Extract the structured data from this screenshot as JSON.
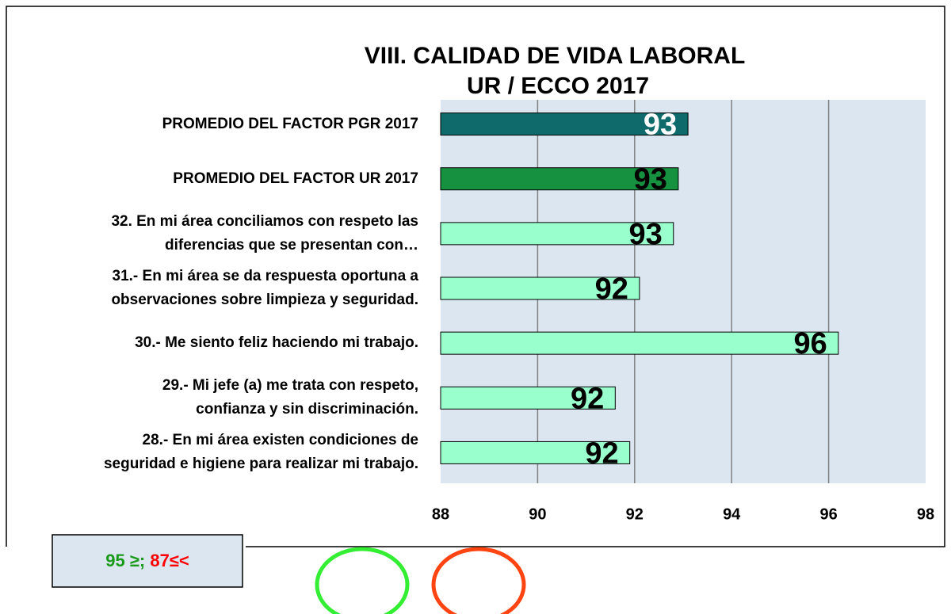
{
  "chart_data": {
    "type": "bar",
    "orientation": "horizontal",
    "title": "VIII. CALIDAD DE VIDA LABORAL",
    "subtitle": "UR / ECCO 2017",
    "categories": [
      "PROMEDIO DEL FACTOR PGR 2017",
      "PROMEDIO DEL FACTOR UR 2017",
      "32. En mi área conciliamos con respeto las\ndiferencias que se presentan con…",
      "31.- En mi área se da respuesta oportuna a\nobservaciones sobre limpieza y seguridad.",
      "30.- Me siento feliz haciendo mi trabajo.",
      "29.- Mi jefe (a) me trata con respeto,\nconfianza y sin discriminación.",
      "28.- En mi área existen condiciones de\nseguridad e higiene para realizar mi trabajo."
    ],
    "values": [
      93.1,
      92.9,
      92.8,
      92.1,
      96.2,
      91.6,
      91.9
    ],
    "value_labels": [
      "93",
      "93",
      "93",
      "92",
      "96",
      "92",
      "92"
    ],
    "colors": [
      "#0f6b6b",
      "#16913f",
      "#99ffcc",
      "#99ffcc",
      "#99ffcc",
      "#99ffcc",
      "#99ffcc"
    ],
    "label_colors": [
      "#ffffff",
      "#000000",
      "#000000",
      "#000000",
      "#000000",
      "#000000",
      "#000000"
    ],
    "xlim": [
      88,
      98
    ],
    "xticks": [
      88,
      90,
      92,
      94,
      96,
      98
    ],
    "grid": true,
    "annotations": [
      {
        "text": "95 ≥;",
        "color": "#1a9a1a"
      },
      {
        "text": "87≤<",
        "color": "#ff0000"
      }
    ]
  }
}
